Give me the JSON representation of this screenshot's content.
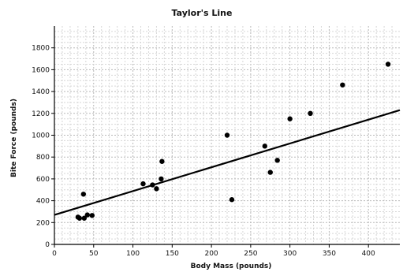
{
  "chart_data": {
    "type": "scatter",
    "title": "Taylor's Line",
    "xlabel": "Body Mass (pounds)",
    "ylabel": "Bite Force (pounds)",
    "xlim": [
      0,
      440
    ],
    "ylim": [
      0,
      2000
    ],
    "x_ticks": [
      0,
      50,
      100,
      150,
      200,
      250,
      300,
      350,
      400
    ],
    "y_ticks": [
      0,
      200,
      400,
      600,
      800,
      1000,
      1200,
      1400,
      1600,
      1800
    ],
    "grid": true,
    "points": [
      {
        "x": 32,
        "y": 240
      },
      {
        "x": 30,
        "y": 250
      },
      {
        "x": 38,
        "y": 240
      },
      {
        "x": 42,
        "y": 270
      },
      {
        "x": 48,
        "y": 265
      },
      {
        "x": 37,
        "y": 460
      },
      {
        "x": 113,
        "y": 555
      },
      {
        "x": 125,
        "y": 545
      },
      {
        "x": 130,
        "y": 510
      },
      {
        "x": 136,
        "y": 600
      },
      {
        "x": 137,
        "y": 760
      },
      {
        "x": 220,
        "y": 1000
      },
      {
        "x": 226,
        "y": 410
      },
      {
        "x": 268,
        "y": 900
      },
      {
        "x": 275,
        "y": 660
      },
      {
        "x": 284,
        "y": 770
      },
      {
        "x": 300,
        "y": 1150
      },
      {
        "x": 326,
        "y": 1200
      },
      {
        "x": 367,
        "y": 1460
      },
      {
        "x": 425,
        "y": 1650
      }
    ],
    "trend_line": {
      "x": [
        0,
        440
      ],
      "y": [
        270,
        1230
      ]
    }
  }
}
